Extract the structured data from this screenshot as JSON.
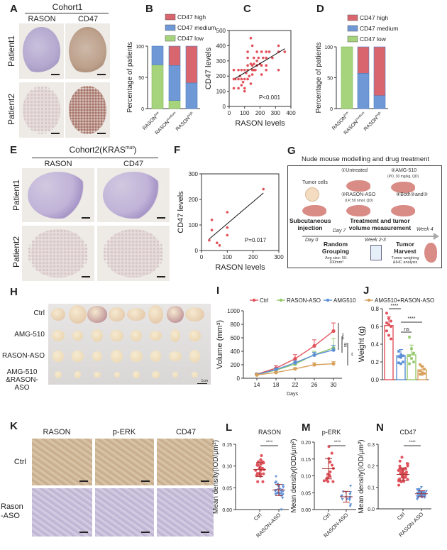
{
  "panels": {
    "A": "A",
    "B": "B",
    "C": "C",
    "D": "D",
    "E": "E",
    "F": "F",
    "G": "G",
    "H": "H",
    "I": "I",
    "J": "J",
    "K": "K",
    "L": "L",
    "M": "M",
    "N": "N"
  },
  "panelA": {
    "title": "Cohort1",
    "columns": [
      "RASON",
      "CD47"
    ],
    "rows": [
      "Patient1",
      "Patient2"
    ]
  },
  "panelE": {
    "title": "Cohort2(KRAS",
    "title_sup": "mut",
    ")": ")",
    "title_end": ")",
    "columns": [
      "RASON",
      "CD47"
    ],
    "rows": [
      "Patient1",
      "Patient2"
    ]
  },
  "panelG": {
    "title": "Nude mouse modelling and drug treatment",
    "tumor_cells": "Tumor cells",
    "groups": [
      "①Untreated",
      "②AMG-510",
      "③RASON-ASO",
      "④Both②and③"
    ],
    "group_notes": [
      "(PO, 30 mg/kg, QD)",
      "(I.P, 50 nmol, QD)"
    ],
    "steps": [
      "Subcutaneous injection",
      "Treatment and tumor volume measurement",
      "Random Grouping",
      "Tumor Harvest"
    ],
    "step_notes": [
      "Avg size: 50-100mm³",
      "Tumor weighing &IHC analysis"
    ],
    "timeline": [
      "Day 0",
      "Day 7",
      "Week 2-3",
      "Week 4"
    ]
  },
  "panelH": {
    "rows": [
      "Ctrl",
      "AMG-510",
      "RASON-ASO",
      "AMG-510 &RASON-ASO"
    ],
    "scale": "1cm"
  },
  "panelK": {
    "columns": [
      "RASON",
      "p-ERK",
      "CD47"
    ],
    "rows": [
      "Ctrl",
      "Rason -ASO"
    ]
  },
  "colors": {
    "red": "#e0535c",
    "blue": "#5b8fd6",
    "green": "#93c96a",
    "orange": "#d7a05a",
    "bar_high": "#d9666e",
    "bar_med": "#6f98d6",
    "bar_low": "#a6d47c"
  },
  "chart_data": [
    {
      "type": "bar",
      "stacked": true,
      "title": "",
      "ylabel": "Percentage of patients",
      "ylim": [
        0,
        100
      ],
      "yticks": [
        "0",
        "50",
        "100"
      ],
      "categories": [
        "RASON",
        "RASON",
        "RASON"
      ],
      "category_sups": [
        "low",
        "medium",
        "high"
      ],
      "series": [
        {
          "name": "CD47 low",
          "values": [
            70,
            13,
            0
          ]
        },
        {
          "name": "CD47 medium",
          "values": [
            30,
            56,
            41
          ]
        },
        {
          "name": "CD47 high",
          "values": [
            0,
            31,
            59
          ]
        }
      ],
      "legend": [
        "CD47 high",
        "CD47 medium",
        "CD47 low"
      ]
    },
    {
      "type": "scatter",
      "xlabel": "RASON levels",
      "ylabel": "CD47 levels",
      "xlim": [
        0,
        400
      ],
      "ylim": [
        0,
        500
      ],
      "xticks": [
        "0",
        "100",
        "200",
        "300",
        "400"
      ],
      "yticks": [
        "0",
        "100",
        "200",
        "300",
        "400",
        "500"
      ],
      "annotation": "P<0.001",
      "points": [
        [
          30,
          120
        ],
        [
          30,
          180
        ],
        [
          30,
          240
        ],
        [
          40,
          180
        ],
        [
          60,
          120
        ],
        [
          60,
          180
        ],
        [
          60,
          240
        ],
        [
          70,
          200
        ],
        [
          80,
          140
        ],
        [
          80,
          180
        ],
        [
          80,
          240
        ],
        [
          90,
          160
        ],
        [
          100,
          100
        ],
        [
          100,
          120
        ],
        [
          100,
          180
        ],
        [
          100,
          240
        ],
        [
          110,
          220
        ],
        [
          120,
          180
        ],
        [
          120,
          240
        ],
        [
          120,
          270
        ],
        [
          120,
          320
        ],
        [
          120,
          360
        ],
        [
          130,
          200
        ],
        [
          140,
          150
        ],
        [
          140,
          450
        ],
        [
          140,
          280
        ],
        [
          150,
          210
        ],
        [
          150,
          240
        ],
        [
          150,
          400
        ],
        [
          150,
          270
        ],
        [
          160,
          240
        ],
        [
          160,
          280
        ],
        [
          160,
          320
        ],
        [
          170,
          240
        ],
        [
          180,
          270
        ],
        [
          180,
          300
        ],
        [
          180,
          360
        ],
        [
          190,
          320
        ],
        [
          200,
          280
        ],
        [
          210,
          210
        ],
        [
          210,
          270
        ],
        [
          210,
          360
        ],
        [
          220,
          320
        ],
        [
          240,
          240
        ],
        [
          240,
          270
        ],
        [
          240,
          320
        ],
        [
          240,
          360
        ],
        [
          260,
          360
        ],
        [
          280,
          320
        ],
        [
          320,
          240
        ],
        [
          320,
          360
        ],
        [
          320,
          400
        ],
        [
          360,
          360
        ]
      ],
      "fit": [
        [
          40,
          185
        ],
        [
          360,
          380
        ]
      ]
    },
    {
      "type": "bar",
      "stacked": true,
      "ylabel": "Percentage of patients",
      "ylim": [
        0,
        100
      ],
      "yticks": [
        "0",
        "50",
        "100"
      ],
      "categories": [
        "RASON",
        "RASON",
        "RASON"
      ],
      "category_sups": [
        "low",
        "medium",
        "high"
      ],
      "series": [
        {
          "name": "CD47 low",
          "values": [
            100,
            0,
            0
          ]
        },
        {
          "name": "CD47 medium",
          "values": [
            0,
            57,
            21
          ]
        },
        {
          "name": "CD47 high",
          "values": [
            0,
            43,
            79
          ]
        }
      ],
      "legend": [
        "CD47 high",
        "CD47 medium",
        "CD47 low"
      ]
    },
    {
      "type": "scatter",
      "xlabel": "RASON levels",
      "ylabel": "CD47 levels",
      "xlim": [
        0,
        300
      ],
      "ylim": [
        0,
        300
      ],
      "xticks": [
        "0",
        "100",
        "200",
        "300"
      ],
      "yticks": [
        "0",
        "100",
        "200",
        "300"
      ],
      "annotation": "P=0.017",
      "points": [
        [
          30,
          40
        ],
        [
          40,
          120
        ],
        [
          40,
          80
        ],
        [
          60,
          30
        ],
        [
          70,
          20
        ],
        [
          100,
          150
        ],
        [
          100,
          90
        ],
        [
          100,
          60
        ],
        [
          240,
          240
        ]
      ],
      "fit": [
        [
          30,
          45
        ],
        [
          240,
          225
        ]
      ]
    },
    {
      "type": "line",
      "xlabel": "Days",
      "ylabel": "Volume (mm³)",
      "ylim": [
        0,
        1000
      ],
      "yticks": [
        "0",
        "200",
        "400",
        "600",
        "800",
        "1000"
      ],
      "x": [
        14,
        18,
        22,
        26,
        30
      ],
      "xticks": [
        "14",
        "18",
        "22",
        "26",
        "30"
      ],
      "series": [
        {
          "name": "Ctrl",
          "values": [
            60,
            150,
            290,
            480,
            700
          ],
          "err": [
            15,
            40,
            60,
            90,
            120
          ]
        },
        {
          "name": "RASON-ASO",
          "values": [
            55,
            120,
            210,
            350,
            450
          ],
          "err": [
            10,
            20,
            30,
            50,
            140
          ]
        },
        {
          "name": "AMG510",
          "values": [
            55,
            130,
            230,
            345,
            420
          ],
          "err": [
            10,
            20,
            30,
            40,
            70
          ]
        },
        {
          "name": "AMG510+RASON-ASO",
          "values": [
            50,
            85,
            140,
            200,
            215
          ],
          "err": [
            8,
            10,
            15,
            30,
            30
          ]
        }
      ],
      "significance": [
        "****",
        "ns",
        "**"
      ]
    },
    {
      "type": "bar",
      "ylabel": "Weight (g)",
      "ylim": [
        0,
        0.8
      ],
      "yticks": [
        "0.0",
        "0.2",
        "0.4",
        "0.6",
        "0.8"
      ],
      "categories": [
        "Ctrl",
        "AMG510",
        "RASON-ASO",
        "AMG510+RASON-ASO"
      ],
      "values": [
        0.61,
        0.27,
        0.28,
        0.11
      ],
      "err": [
        0.1,
        0.07,
        0.11,
        0.04
      ],
      "points": [
        [
          0.75,
          0.69,
          0.66,
          0.64,
          0.62,
          0.6,
          0.55,
          0.5,
          0.46
        ],
        [
          0.32,
          0.28,
          0.27,
          0.26,
          0.25,
          0.2,
          0.19,
          0.18
        ],
        [
          0.48,
          0.35,
          0.3,
          0.27,
          0.24,
          0.2,
          0.18
        ],
        [
          0.17,
          0.15,
          0.12,
          0.1,
          0.08,
          0.07,
          0.06,
          0.06
        ]
      ],
      "significance": [
        "****",
        "ns",
        "****"
      ]
    },
    {
      "type": "scatter",
      "title": "RASON",
      "ylabel": "Mean density(IOD/μm²)",
      "ylim": [
        0,
        0.15
      ],
      "yticks": [
        "0.00",
        "0.05",
        "0.10",
        "0.15"
      ],
      "categories": [
        "Ctrl",
        "RASON-ASO"
      ],
      "mean": [
        0.092,
        0.045
      ],
      "sd": [
        0.016,
        0.013
      ],
      "n": [
        30,
        34
      ],
      "range": [
        [
          0.064,
          0.124
        ],
        [
          0.0,
          0.076
        ]
      ],
      "significance": "****"
    },
    {
      "type": "scatter",
      "title": "p-ERK",
      "ylabel": "Mean density(IOD/μm²)",
      "ylim": [
        0,
        0.2
      ],
      "yticks": [
        "0.00",
        "0.05",
        "0.10",
        "0.15",
        "0.20"
      ],
      "categories": [
        "Ctrl",
        "RASON-ASO"
      ],
      "mean": [
        0.121,
        0.038
      ],
      "sd": [
        0.03,
        0.016
      ],
      "n": [
        16,
        16
      ],
      "range": [
        [
          0.083,
          0.187
        ],
        [
          0.01,
          0.07
        ]
      ],
      "significance": "****"
    },
    {
      "type": "scatter",
      "title": "CD47",
      "ylabel": "Mean density(IOD/μm²)",
      "ylim": [
        0,
        0.3
      ],
      "yticks": [
        "0.0",
        "0.1",
        "0.2",
        "0.3"
      ],
      "categories": [
        "Ctrl",
        "RASON-ASO"
      ],
      "mean": [
        0.16,
        0.07
      ],
      "sd": [
        0.03,
        0.014
      ],
      "n": [
        40,
        40
      ],
      "range": [
        [
          0.11,
          0.24
        ],
        [
          0.045,
          0.1
        ]
      ],
      "significance": "****"
    }
  ]
}
